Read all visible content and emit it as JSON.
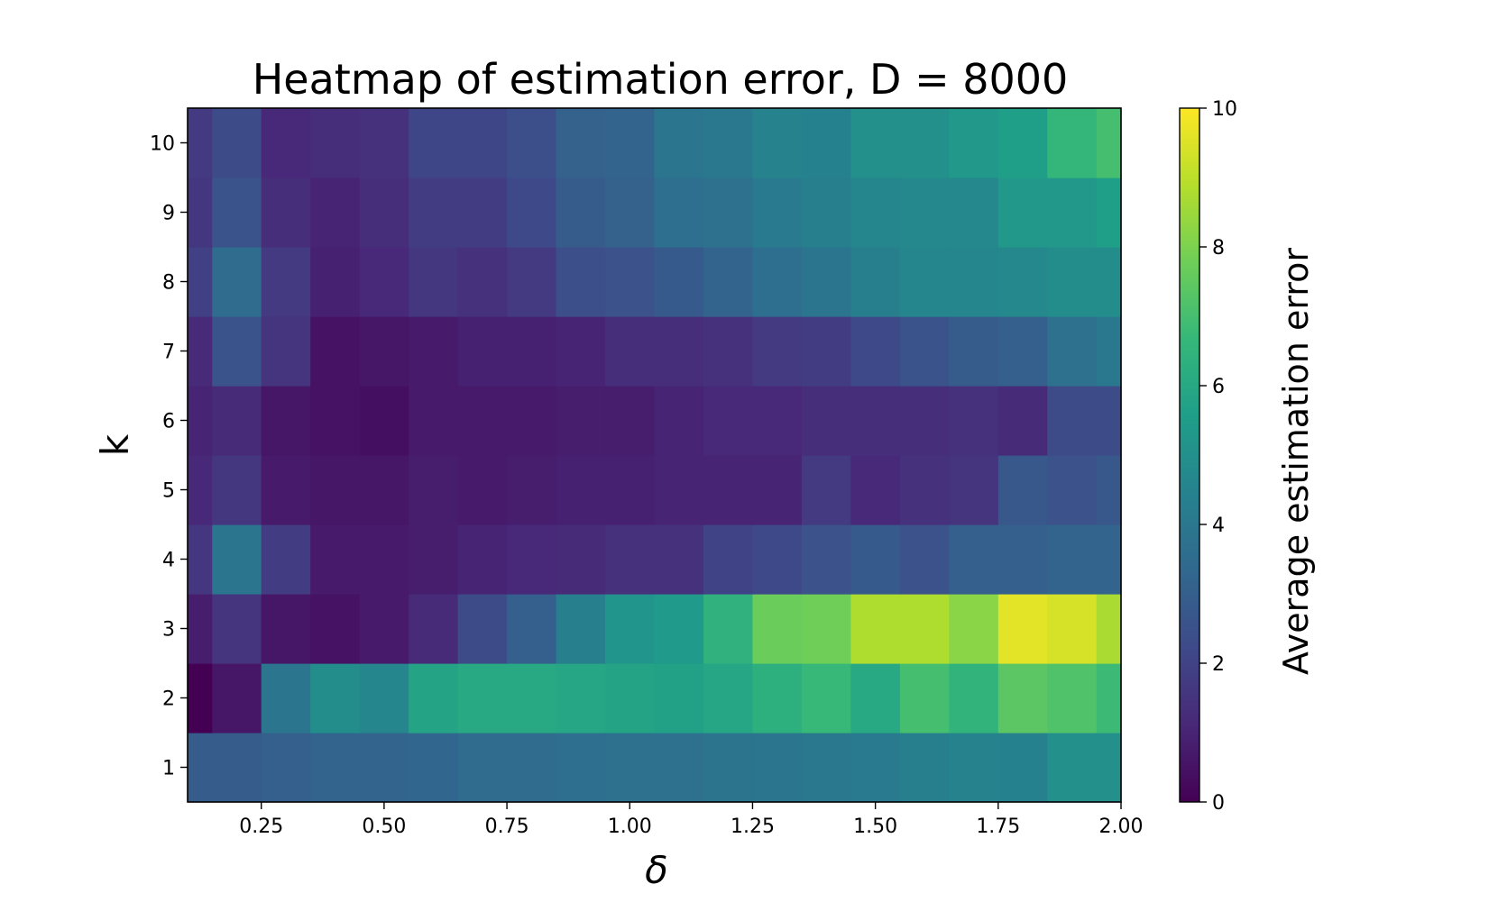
{
  "chart_data": {
    "type": "heatmap",
    "title": "Heatmap of estimation error, D = 8000",
    "xlabel": "δ",
    "ylabel": "k",
    "colorbar_label": "Average estimation error",
    "colormap": "viridis",
    "x": [
      0.1,
      0.2,
      0.3,
      0.4,
      0.5,
      0.6,
      0.7,
      0.8,
      0.9,
      1.0,
      1.1,
      1.2,
      1.3,
      1.4,
      1.5,
      1.6,
      1.7,
      1.8,
      1.9,
      2.0
    ],
    "y": [
      1,
      2,
      3,
      4,
      5,
      6,
      7,
      8,
      9,
      10
    ],
    "xlim": [
      0.1,
      2.0
    ],
    "ylim": [
      0.5,
      10.5
    ],
    "x_ticks": [
      "0.25",
      "0.50",
      "0.75",
      "1.00",
      "1.25",
      "1.50",
      "1.75",
      "2.00"
    ],
    "y_ticks": [
      "1",
      "2",
      "3",
      "4",
      "5",
      "6",
      "7",
      "8",
      "9",
      "10"
    ],
    "colorbar_range": [
      0,
      10
    ],
    "colorbar_ticks": [
      "0",
      "2",
      "4",
      "6",
      "8",
      "10"
    ],
    "values": [
      [
        2.9,
        2.9,
        3.0,
        3.2,
        3.2,
        3.3,
        3.5,
        3.5,
        3.6,
        3.7,
        3.7,
        3.8,
        3.9,
        4.0,
        4.1,
        4.3,
        4.5,
        4.4,
        5.0,
        5.0
      ],
      [
        0.0,
        0.6,
        3.9,
        4.9,
        4.6,
        5.8,
        6.0,
        6.0,
        5.9,
        5.8,
        5.7,
        5.9,
        6.3,
        6.7,
        6.0,
        7.0,
        6.5,
        7.4,
        7.2,
        6.8
      ],
      [
        0.8,
        1.5,
        0.6,
        0.5,
        0.7,
        1.2,
        2.3,
        3.0,
        4.3,
        5.2,
        5.4,
        6.4,
        7.7,
        7.8,
        8.8,
        8.8,
        8.2,
        9.6,
        9.4,
        8.7
      ],
      [
        1.6,
        3.9,
        1.8,
        0.7,
        0.7,
        0.8,
        1.0,
        1.1,
        1.2,
        1.4,
        1.4,
        2.0,
        2.2,
        2.5,
        2.8,
        2.5,
        3.0,
        3.0,
        3.2,
        3.2
      ],
      [
        1.1,
        1.6,
        0.7,
        0.6,
        0.6,
        0.8,
        0.7,
        0.8,
        0.9,
        0.9,
        1.0,
        1.0,
        1.0,
        1.7,
        1.1,
        1.4,
        1.5,
        2.7,
        2.5,
        2.7
      ],
      [
        1.0,
        1.2,
        0.6,
        0.5,
        0.4,
        0.7,
        0.7,
        0.7,
        0.8,
        0.8,
        1.0,
        1.1,
        1.1,
        1.3,
        1.3,
        1.3,
        1.4,
        1.2,
        2.3,
        2.3
      ],
      [
        1.2,
        2.6,
        1.5,
        0.5,
        0.6,
        0.7,
        0.9,
        0.9,
        1.0,
        1.3,
        1.3,
        1.4,
        1.7,
        1.8,
        2.2,
        2.6,
        2.9,
        3.0,
        3.7,
        4.0
      ],
      [
        1.9,
        3.5,
        1.7,
        0.9,
        1.1,
        1.6,
        1.4,
        1.7,
        2.4,
        2.5,
        2.8,
        3.2,
        3.6,
        3.9,
        4.3,
        4.6,
        4.6,
        4.7,
        4.9,
        4.9
      ],
      [
        1.6,
        2.6,
        1.3,
        1.0,
        1.3,
        1.8,
        1.8,
        2.2,
        2.9,
        3.1,
        3.6,
        3.7,
        4.1,
        4.3,
        4.6,
        4.7,
        4.7,
        5.3,
        5.3,
        5.6
      ],
      [
        1.7,
        2.3,
        1.1,
        1.3,
        1.4,
        2.1,
        2.1,
        2.4,
        3.1,
        3.2,
        3.9,
        4.0,
        4.5,
        4.4,
        5.0,
        5.0,
        5.3,
        5.6,
        6.6,
        7.0
      ]
    ]
  }
}
